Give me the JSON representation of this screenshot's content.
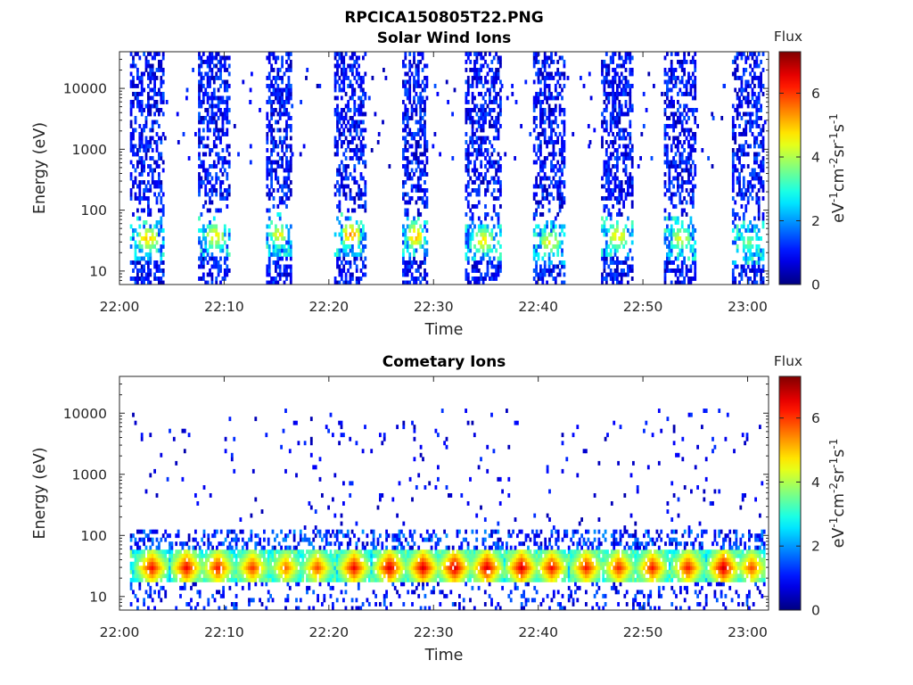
{
  "figure_title": "RPCICA150805T22.PNG",
  "chart_data": [
    {
      "type": "heatmap",
      "title": "Solar Wind Ions",
      "xlabel": "Time",
      "ylabel": "Energy (eV)",
      "x_ticks": [
        "22:00",
        "22:10",
        "22:20",
        "22:30",
        "22:40",
        "22:50",
        "23:00"
      ],
      "x_tick_minutes": [
        0,
        10,
        20,
        30,
        40,
        50,
        60
      ],
      "xlim_minutes": [
        0,
        62
      ],
      "y_scale": "log",
      "y_ticks": [
        "10",
        "100",
        "1000",
        "10000"
      ],
      "y_tick_values": [
        10,
        100,
        1000,
        10000
      ],
      "ylim": [
        6,
        40000
      ],
      "grid": false,
      "colorbar": {
        "title": "Flux",
        "label_base": "eV",
        "label_exp1": "-1",
        "label_mid1": "cm",
        "label_exp2": "-2",
        "label_mid2": "sr",
        "label_exp3": "-1",
        "label_mid3": "s",
        "label_exp4": "-1",
        "ticks": [
          "0",
          "2",
          "4",
          "6"
        ],
        "tick_values": [
          0,
          2,
          4,
          6
        ],
        "range": [
          0,
          7.3
        ],
        "colormap": "jet"
      },
      "bursts": [
        {
          "start_min": 1.0,
          "end_min": 4.2,
          "peak_energy_ev": 35,
          "peak_flux": 5.2
        },
        {
          "start_min": 7.5,
          "end_min": 10.5,
          "peak_energy_ev": 38,
          "peak_flux": 5.0
        },
        {
          "start_min": 14.0,
          "end_min": 16.3,
          "peak_energy_ev": 40,
          "peak_flux": 4.8
        },
        {
          "start_min": 20.5,
          "end_min": 23.5,
          "peak_energy_ev": 40,
          "peak_flux": 5.6
        },
        {
          "start_min": 27.0,
          "end_min": 29.3,
          "peak_energy_ev": 38,
          "peak_flux": 5.6
        },
        {
          "start_min": 33.0,
          "end_min": 36.3,
          "peak_energy_ev": 32,
          "peak_flux": 5.0
        },
        {
          "start_min": 39.5,
          "end_min": 42.5,
          "peak_energy_ev": 30,
          "peak_flux": 4.8
        },
        {
          "start_min": 46.0,
          "end_min": 49.0,
          "peak_energy_ev": 38,
          "peak_flux": 5.0
        },
        {
          "start_min": 52.0,
          "end_min": 55.0,
          "peak_energy_ev": 35,
          "peak_flux": 4.6
        },
        {
          "start_min": 58.5,
          "end_min": 61.5,
          "peak_energy_ev": 30,
          "peak_flux": 3.8
        }
      ]
    },
    {
      "type": "heatmap",
      "title": "Cometary Ions",
      "xlabel": "Time",
      "ylabel": "Energy (eV)",
      "x_ticks": [
        "22:00",
        "22:10",
        "22:20",
        "22:30",
        "22:40",
        "22:50",
        "23:00"
      ],
      "x_tick_minutes": [
        0,
        10,
        20,
        30,
        40,
        50,
        60
      ],
      "xlim_minutes": [
        0,
        62
      ],
      "y_scale": "log",
      "y_ticks": [
        "10",
        "100",
        "1000",
        "10000"
      ],
      "y_tick_values": [
        10,
        100,
        1000,
        10000
      ],
      "ylim": [
        6,
        40000
      ],
      "grid": false,
      "colorbar": {
        "title": "Flux",
        "label_base": "eV",
        "label_exp1": "-1",
        "label_mid1": "cm",
        "label_exp2": "-2",
        "label_mid2": "sr",
        "label_exp3": "-1",
        "label_mid3": "s",
        "label_exp4": "-1",
        "ticks": [
          "0",
          "2",
          "4",
          "6"
        ],
        "tick_values": [
          0,
          2,
          4,
          6
        ],
        "range": [
          0,
          7.3
        ],
        "colormap": "jet"
      },
      "band": {
        "start_min": 1.0,
        "end_min": 61.5,
        "center_energy_ev": 30,
        "low_energy_ev": 18,
        "high_energy_ev": 60
      },
      "blobs": [
        {
          "center_min": 3.0,
          "peak_flux": 6.5
        },
        {
          "center_min": 6.3,
          "peak_flux": 6.6
        },
        {
          "center_min": 9.3,
          "peak_flux": 6.4
        },
        {
          "center_min": 12.6,
          "peak_flux": 6.2
        },
        {
          "center_min": 15.8,
          "peak_flux": 5.8
        },
        {
          "center_min": 18.8,
          "peak_flux": 6.0
        },
        {
          "center_min": 22.3,
          "peak_flux": 6.6
        },
        {
          "center_min": 25.7,
          "peak_flux": 6.8
        },
        {
          "center_min": 28.9,
          "peak_flux": 6.8
        },
        {
          "center_min": 31.9,
          "peak_flux": 6.9
        },
        {
          "center_min": 35.0,
          "peak_flux": 6.8
        },
        {
          "center_min": 38.3,
          "peak_flux": 6.8
        },
        {
          "center_min": 41.2,
          "peak_flux": 6.5
        },
        {
          "center_min": 44.5,
          "peak_flux": 6.4
        },
        {
          "center_min": 47.6,
          "peak_flux": 6.3
        },
        {
          "center_min": 50.8,
          "peak_flux": 6.4
        },
        {
          "center_min": 54.2,
          "peak_flux": 6.4
        },
        {
          "center_min": 57.6,
          "peak_flux": 6.9
        },
        {
          "center_min": 60.3,
          "peak_flux": 6.0
        }
      ]
    }
  ]
}
